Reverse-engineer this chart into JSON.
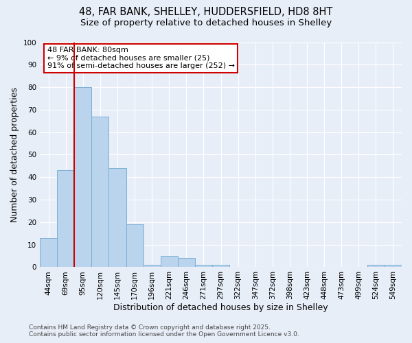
{
  "title_line1": "48, FAR BANK, SHELLEY, HUDDERSFIELD, HD8 8HT",
  "title_line2": "Size of property relative to detached houses in Shelley",
  "xlabel": "Distribution of detached houses by size in Shelley",
  "ylabel": "Number of detached properties",
  "categories": [
    "44sqm",
    "69sqm",
    "95sqm",
    "120sqm",
    "145sqm",
    "170sqm",
    "196sqm",
    "221sqm",
    "246sqm",
    "271sqm",
    "297sqm",
    "322sqm",
    "347sqm",
    "372sqm",
    "398sqm",
    "423sqm",
    "448sqm",
    "473sqm",
    "499sqm",
    "524sqm",
    "549sqm"
  ],
  "values": [
    13,
    43,
    80,
    67,
    44,
    19,
    1,
    5,
    4,
    1,
    1,
    0,
    0,
    0,
    0,
    0,
    0,
    0,
    0,
    1,
    1
  ],
  "bar_color": "#bad4ee",
  "bar_edge_color": "#7aafd4",
  "red_line_x": 1.5,
  "annotation_text": "48 FAR BANK: 80sqm\n← 9% of detached houses are smaller (25)\n91% of semi-detached houses are larger (252) →",
  "annotation_box_color": "#ffffff",
  "annotation_box_edge": "#cc0000",
  "footer_line1": "Contains HM Land Registry data © Crown copyright and database right 2025.",
  "footer_line2": "Contains public sector information licensed under the Open Government Licence v3.0.",
  "background_color": "#e8eef8",
  "grid_color": "#ffffff",
  "ylim": [
    0,
    100
  ],
  "title_fontsize": 10.5,
  "subtitle_fontsize": 9.5,
  "annotation_fontsize": 8,
  "axis_label_fontsize": 9,
  "tick_fontsize": 7.5,
  "footer_fontsize": 6.5
}
